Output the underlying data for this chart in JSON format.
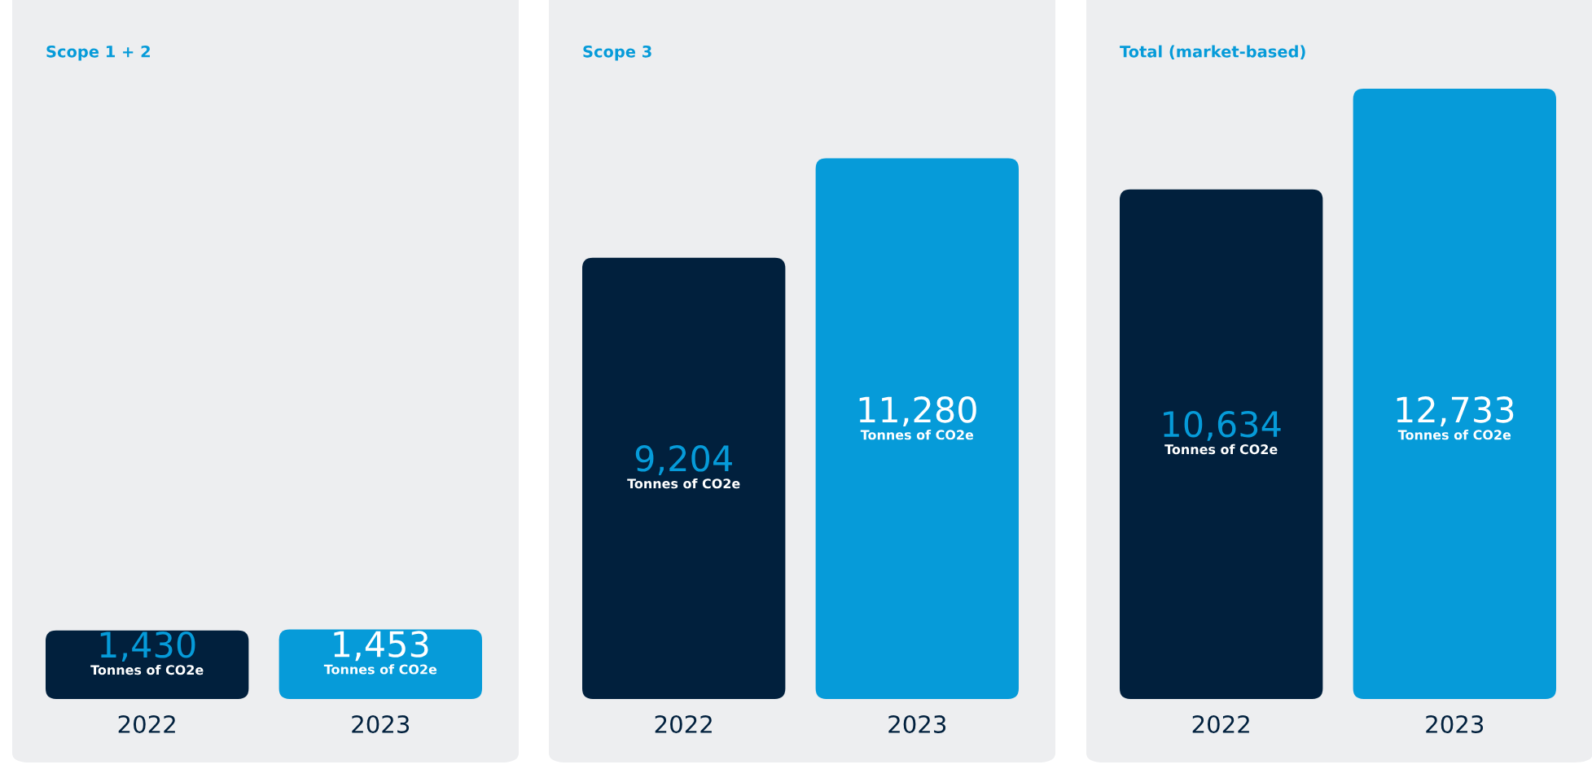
{
  "chart_data": [
    {
      "type": "bar",
      "title": "Scope 1 + 2",
      "categories": [
        "2022",
        "2023"
      ],
      "values": [
        1430,
        1453
      ],
      "colors": [
        "#01203d",
        "#069bd9"
      ],
      "value_labels": [
        "1,430\nTonnes of CO2e",
        "1,453\nTonnes of CO2e"
      ],
      "tick_labels": "x"
    },
    {
      "type": "bar",
      "title": "Scope 3",
      "categories": [
        "2022",
        "2023"
      ],
      "values": [
        9204,
        11280
      ],
      "colors": [
        "#01203d",
        "#069bd9"
      ],
      "value_labels": [
        "9,204\nTonnes of CO2e",
        "11,280\nTonnes of CO2e"
      ],
      "tick_labels": "x"
    },
    {
      "type": "bar",
      "title": "Total (market-based)",
      "categories": [
        "2022",
        "2023"
      ],
      "values": [
        10634,
        12733
      ],
      "colors": [
        "#01203d",
        "#069bd9"
      ],
      "value_labels": [
        "10,634\nTonnes of CO2e",
        "12,733\nTonnes of CO2e"
      ],
      "tick_labels": "x"
    }
  ]
}
